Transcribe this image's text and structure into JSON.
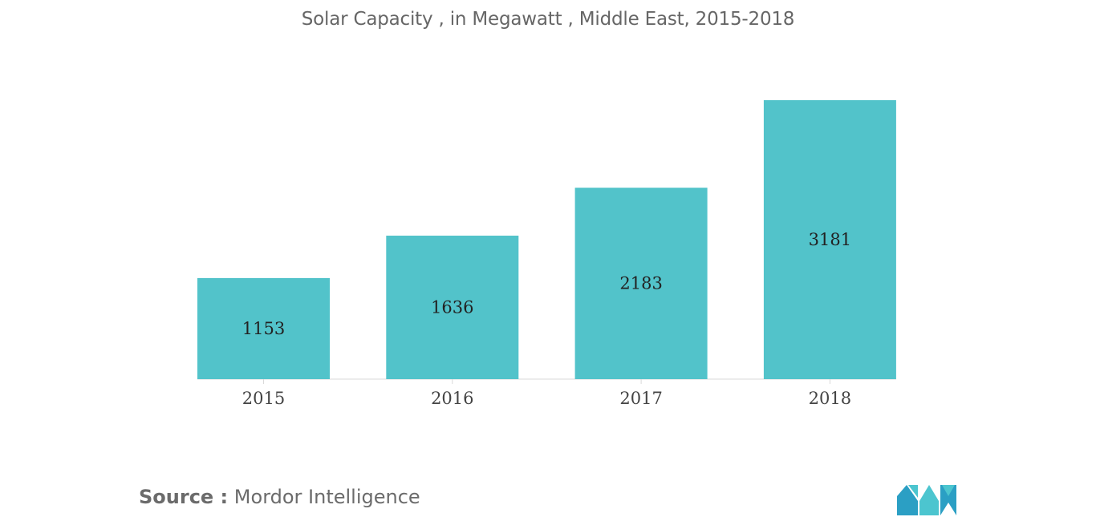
{
  "chart_data": {
    "type": "bar",
    "title": "Solar Capacity , in Megawatt , Middle East, 2015-2018",
    "categories": [
      "2015",
      "2016",
      "2017",
      "2018"
    ],
    "values": [
      1153,
      1636,
      2183,
      3181
    ],
    "value_labels": [
      "1153",
      "1636",
      "2183",
      "3181"
    ],
    "xlabel": "",
    "ylabel": "",
    "ylim": [
      0,
      3181
    ],
    "grid": false,
    "legend": "none",
    "bar_color": "#52c3ca",
    "label_position": "inside-center"
  },
  "source": {
    "prefix": "Source :",
    "text": "Mordor Intelligence"
  },
  "logo": {
    "icon": "mordor-intelligence-logo-icon",
    "colors": [
      "#2b9fc4",
      "#4cc5cf"
    ]
  }
}
